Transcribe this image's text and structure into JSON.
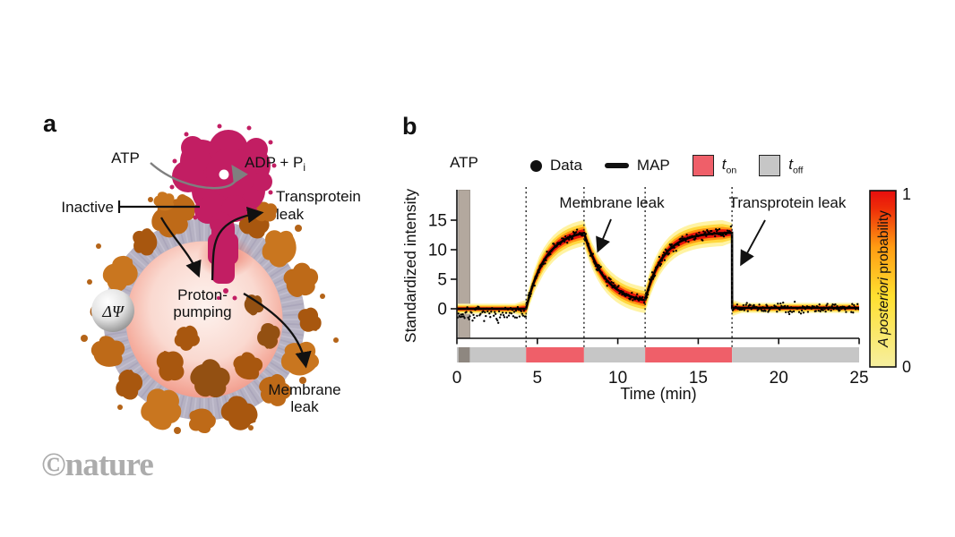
{
  "watermark": "©nature",
  "panel_a": {
    "label": "a",
    "atp": "ATP",
    "adp": "ADP + P",
    "adp_sub": "i",
    "inactive": "Inactive",
    "transprotein_1": "Transprotein",
    "transprotein_2": "leak",
    "proton_1": "Proton-",
    "proton_2": "pumping",
    "membrane_1": "Membrane",
    "membrane_2": "leak",
    "delta_psi": "ΔΨ"
  },
  "panel_b": {
    "label": "b",
    "atp_label": "ATP",
    "legend": {
      "data": "Data",
      "map": "MAP",
      "t_on_sym": "t",
      "t_on_sub": "on",
      "t_off_sym": "t",
      "t_off_sub": "off"
    },
    "annotations": {
      "membrane_leak": "Membrane leak",
      "transprotein_leak": "Transprotein leak"
    }
  },
  "chart_data": {
    "type": "line+heatmap",
    "xlabel": "Time (min)",
    "ylabel": "Standardized intensity",
    "xlim": [
      0,
      25
    ],
    "ylim": [
      -5,
      20.2
    ],
    "xticks": [
      0,
      5,
      10,
      15,
      20,
      25
    ],
    "yticks": [
      0,
      5,
      10,
      15
    ],
    "event_lines_min": [
      4.3,
      7.9,
      11.7,
      17.1
    ],
    "atp_addition": {
      "t0": 0.1,
      "t1": 0.8,
      "color": "#b3a89e",
      "strip_color": "#8e8780"
    },
    "map_segments": [
      {
        "kind": "const",
        "t0": 0,
        "t1": 4.3,
        "y": 0
      },
      {
        "kind": "exp",
        "t0": 4.3,
        "t1": 7.9,
        "y_from": 0,
        "y_to": 13.5,
        "tau": 1.2
      },
      {
        "kind": "exp",
        "t0": 7.9,
        "t1": 11.7,
        "y_from": 12.83,
        "y_to": 0.8,
        "tau": 1.3
      },
      {
        "kind": "exp",
        "t0": 11.7,
        "t1": 17.1,
        "y_from": 1.45,
        "y_to": 12.95,
        "tau": 1.1
      },
      {
        "kind": "const",
        "t0": 17.1,
        "t1": 25,
        "y": 0.15
      }
    ],
    "band_halfwidth": {
      "flat": 0.85,
      "transition": 2.2
    },
    "heat_layers": [
      {
        "color": "#FFF3A3",
        "fraction": 1.0
      },
      {
        "color": "#FFD83F",
        "fraction": 0.7
      },
      {
        "color": "#FF9412",
        "fraction": 0.48
      },
      {
        "color": "#E8150B",
        "fraction": 0.3
      }
    ],
    "scatter": {
      "dt": 0.055,
      "seed": 7,
      "sd": 0.45,
      "baseline_bias": -0.95,
      "baseline_sd": 0.6
    },
    "intervals": [
      {
        "t0": 0,
        "t1": 4.3,
        "state": "off"
      },
      {
        "t0": 4.3,
        "t1": 7.9,
        "state": "on"
      },
      {
        "t0": 7.9,
        "t1": 11.7,
        "state": "off"
      },
      {
        "t0": 11.7,
        "t1": 17.1,
        "state": "on"
      },
      {
        "t0": 17.1,
        "t1": 25,
        "state": "off"
      }
    ],
    "interval_colors": {
      "on": "#EF5F69",
      "off": "#C6C6C6"
    },
    "map_line_color": "#000000",
    "colorbar": {
      "label_italic": "A posteriori",
      "label_rest": " probability",
      "top": "1",
      "bottom": "0",
      "stops": [
        {
          "offset": 0,
          "color": "#F6EFA0"
        },
        {
          "offset": 0.4,
          "color": "#FFE030"
        },
        {
          "offset": 0.68,
          "color": "#FF9C12"
        },
        {
          "offset": 0.9,
          "color": "#EE2D08"
        },
        {
          "offset": 1,
          "color": "#E60E0E"
        }
      ]
    }
  },
  "illustration_colors": {
    "synthase": "#C21E63",
    "membrane_ring": "#B6B2C3",
    "membrane_proteins": [
      "#BE6A18",
      "#A8570F",
      "#C9761F",
      "#935012"
    ]
  }
}
